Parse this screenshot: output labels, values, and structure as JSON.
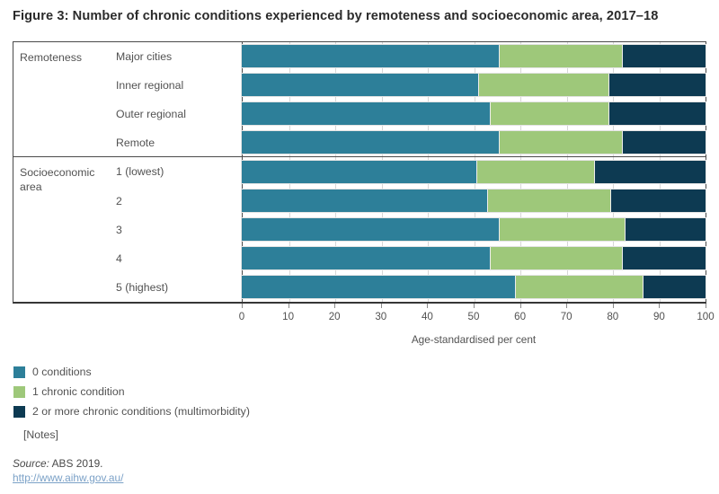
{
  "title": "Figure 3: Number of chronic conditions experienced by remoteness and socioeconomic area, 2017–18",
  "colors": {
    "series_0": "#2d7f99",
    "series_1": "#9ec87a",
    "series_2": "#0d3a52",
    "border": "#4a4a4a",
    "gridline": "#d7d7d7",
    "text": "#525252",
    "link": "#7ba1c7"
  },
  "chart_data": {
    "type": "bar",
    "orientation": "horizontal",
    "stacked": true,
    "xlabel": "Age-standardised per cent",
    "xlim": [
      0,
      100
    ],
    "xticks": [
      0,
      10,
      20,
      30,
      40,
      50,
      60,
      70,
      80,
      90,
      100
    ],
    "grid": true,
    "legend_position": "bottom-left",
    "series": [
      {
        "name": "0 conditions",
        "color": "#2d7f99"
      },
      {
        "name": "1 chronic condition",
        "color": "#9ec87a"
      },
      {
        "name": "2 or more chronic conditions (multimorbidity)",
        "color": "#0d3a52"
      }
    ],
    "groups": [
      {
        "label": "Remoteness",
        "rows": [
          {
            "label": "Major cities",
            "values": [
              55.5,
              26.5,
              18.0
            ]
          },
          {
            "label": "Inner regional",
            "values": [
              51.0,
              28.0,
              21.0
            ]
          },
          {
            "label": "Outer regional",
            "values": [
              53.5,
              25.5,
              21.0
            ]
          },
          {
            "label": "Remote",
            "values": [
              55.5,
              26.5,
              18.0
            ]
          }
        ]
      },
      {
        "label": "Socioeconomic area",
        "rows": [
          {
            "label": "1 (lowest)",
            "values": [
              50.5,
              25.5,
              24.0
            ]
          },
          {
            "label": "2",
            "values": [
              53.0,
              26.5,
              20.5
            ]
          },
          {
            "label": "3",
            "values": [
              55.5,
              27.0,
              17.5
            ]
          },
          {
            "label": "4",
            "values": [
              53.5,
              28.5,
              18.0
            ]
          },
          {
            "label": "5 (highest)",
            "values": [
              59.0,
              27.5,
              13.5
            ]
          }
        ]
      }
    ]
  },
  "legend": {
    "items": [
      {
        "label": "0 conditions",
        "color": "#2d7f99"
      },
      {
        "label": "1 chronic condition",
        "color": "#9ec87a"
      },
      {
        "label": "2 or more chronic conditions (multimorbidity)",
        "color": "#0d3a52"
      }
    ]
  },
  "footer": {
    "notes": "[Notes]",
    "source_label": "Source:",
    "source_text": " ABS 2019.",
    "link_text": "http://www.aihw.gov.au/"
  }
}
